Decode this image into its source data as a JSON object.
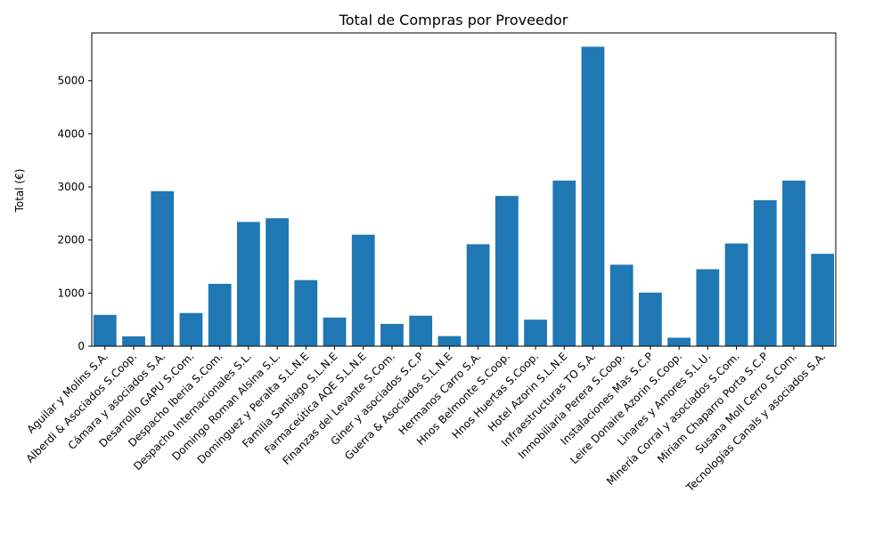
{
  "chart_data": {
    "type": "bar",
    "title": "Total de Compras por Proveedor",
    "xlabel": "",
    "ylabel": "Total (€)",
    "ylim": [
      0,
      5900
    ],
    "yticks": [
      0,
      1000,
      2000,
      3000,
      4000,
      5000
    ],
    "grid": false,
    "bar_color": "#1f77b4",
    "categories": [
      "Aguilar y Molins S.A.",
      "Alberdi & Asociados S.Coop.",
      "Cámara y asociados S.A.",
      "Desarrollo GAPU S.Com.",
      "Despacho Iberia S.Com.",
      "Despacho Internacionales S.L.",
      "Domingo Roman Alsina S.L.",
      "Dominguez y Peralta S.L.N.E",
      "Familia Santiago S.L.N.E",
      "Farmaceútica AQE S.L.N.E",
      "Finanzas del Levante S.Com.",
      "Giner y asociados S.C.P",
      "Guerra & Asociados S.L.N.E",
      "Hermanos Carro S.A.",
      "Hnos Belmonte S.Coop.",
      "Hnos Huertas S.Coop.",
      "Hotel Azorin S.L.N.E",
      "Infraestructuras TO S.A.",
      "Inmobiliaria Perera S.Coop.",
      "Instalaciones Mas S.C.P",
      "Leire Donaire Azorin S.Coop.",
      "Linares y Amores S.L.U.",
      "Minería Corral y asociados S.Com.",
      "Miriam Chaparro Porta S.C.P",
      "Susana Moll Cerro S.Com.",
      "Tecnologías Canals y asociados S.A."
    ],
    "values": [
      590,
      185,
      2920,
      625,
      1175,
      2340,
      2410,
      1245,
      540,
      2100,
      420,
      575,
      190,
      1920,
      2830,
      500,
      3120,
      5640,
      1535,
      1010,
      160,
      1450,
      1935,
      2750,
      3120,
      1740
    ]
  }
}
